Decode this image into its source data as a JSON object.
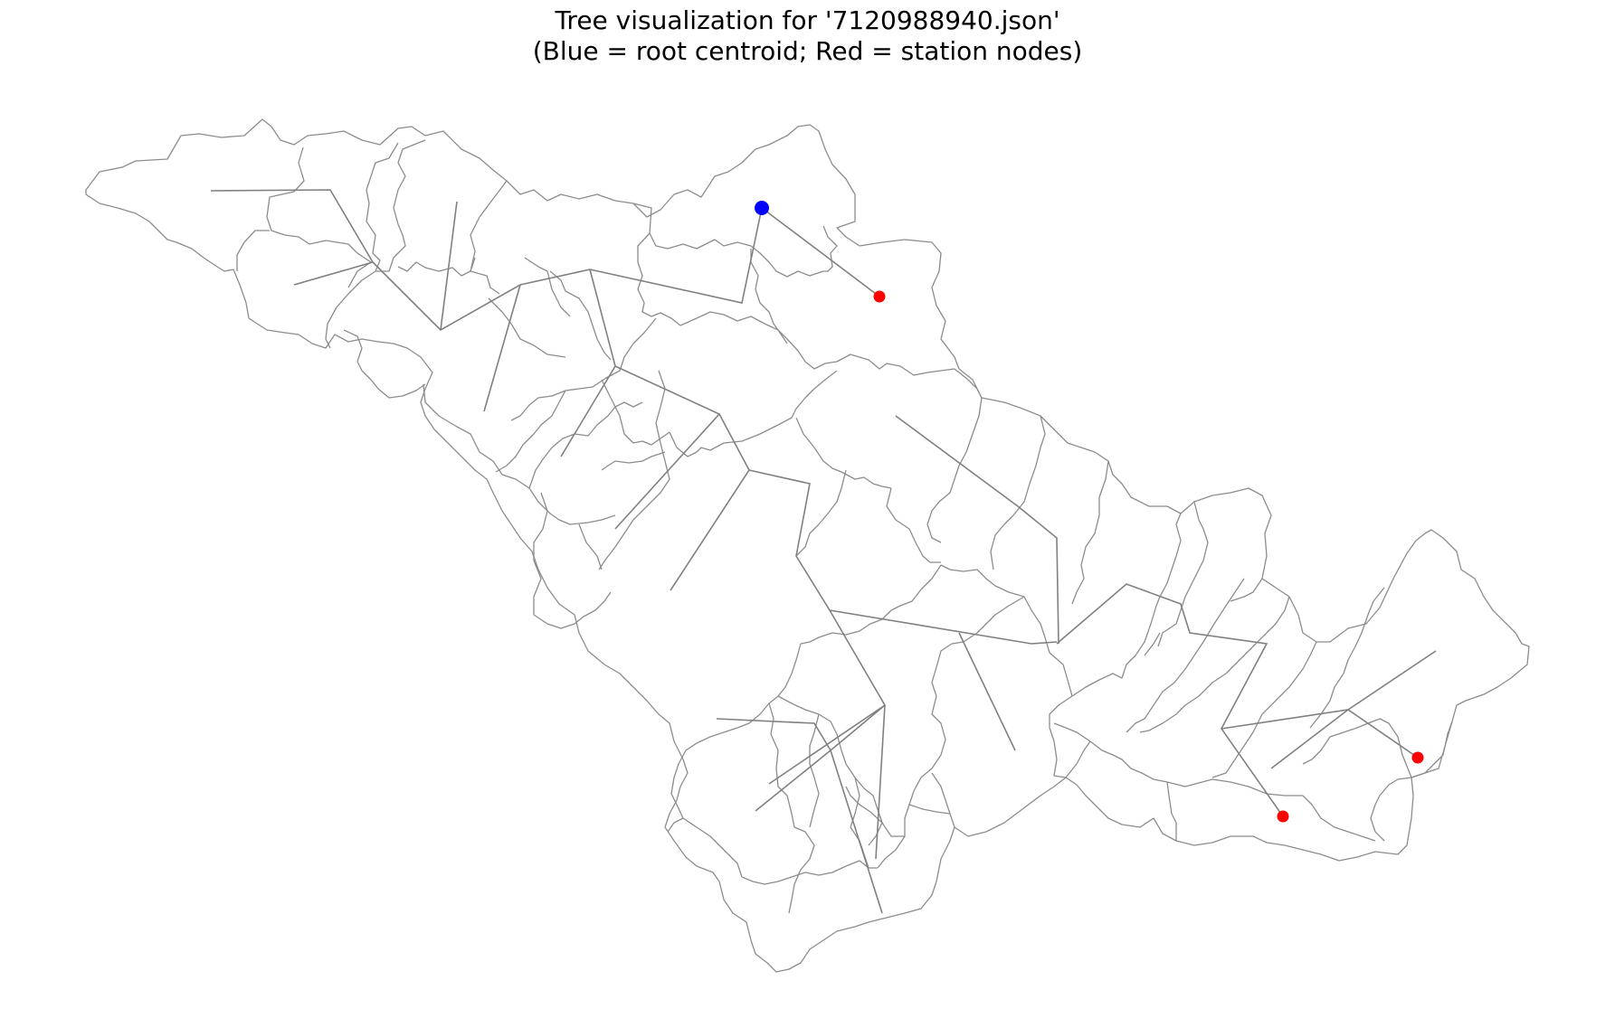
{
  "title": {
    "line1": "Tree visualization for '7120988940.json'",
    "line2": "(Blue = root centroid; Red = station nodes)"
  },
  "colors": {
    "background": "#ffffff",
    "basin_outline": "#8c8c8c",
    "tree_edge": "#808080",
    "root_node": "#0000ff",
    "station_node": "#ff0000"
  },
  "counts": {
    "root_nodes": 1,
    "station_nodes": 3
  }
}
